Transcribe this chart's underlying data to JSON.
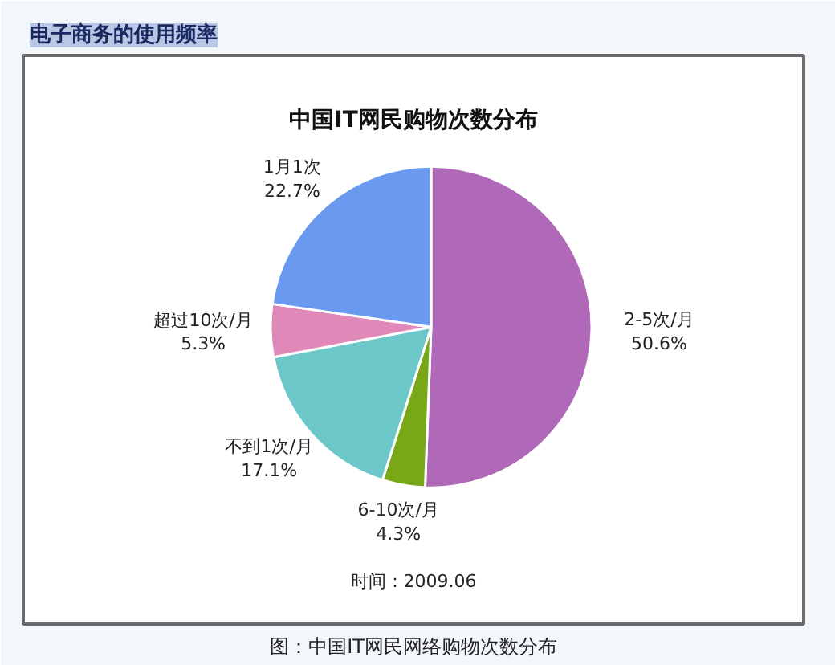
{
  "chart_data": {
    "type": "pie",
    "title": "中国IT网民购物次数分布",
    "categories": [
      "2-5次/月",
      "6-10次/月",
      "不到1次/月",
      "超过10次/月",
      "1月1次"
    ],
    "values": [
      50.6,
      4.3,
      17.1,
      5.3,
      22.7
    ],
    "value_labels": [
      "50.6%",
      "4.3%",
      "17.1%",
      "5.3%",
      "22.7%"
    ],
    "colors": [
      "#b068b8",
      "#78a818",
      "#6cc8c8",
      "#e088b8",
      "#6a9af0"
    ],
    "annotations": [
      "电子商务的使用频率",
      "时间：2009.06",
      "图：中国IT网民网络购物次数分布"
    ]
  }
}
